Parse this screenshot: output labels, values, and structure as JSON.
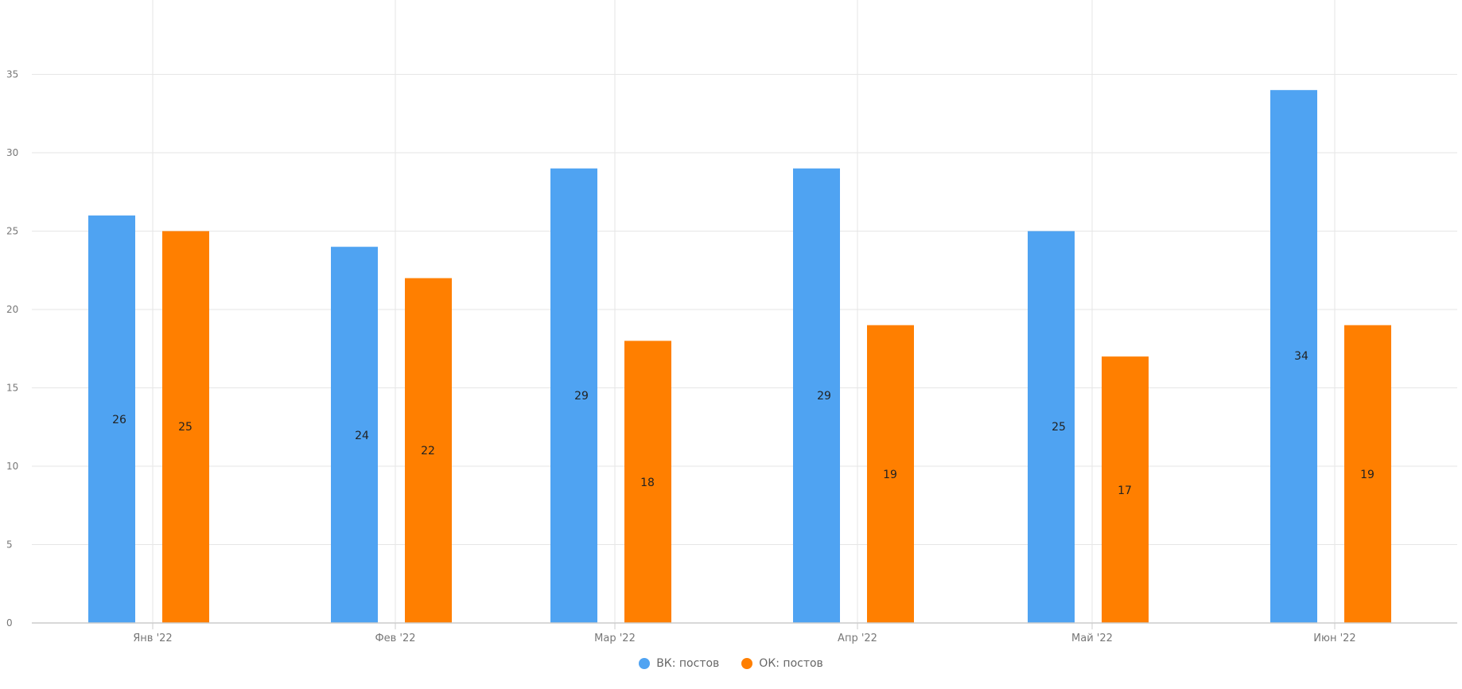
{
  "chart_data": {
    "type": "bar",
    "title": "",
    "xlabel": "",
    "ylabel": "",
    "categories": [
      "Янв '22",
      "Фев '22",
      "Мар '22",
      "Апр '22",
      "Май '22",
      "Июн '22"
    ],
    "series": [
      {
        "name": "ВК: постов",
        "color": "#4fa3f2",
        "values": [
          26,
          24,
          29,
          29,
          25,
          34
        ]
      },
      {
        "name": "ОК: постов",
        "color": "#ff7f00",
        "values": [
          25,
          22,
          18,
          19,
          17,
          19
        ]
      }
    ],
    "ylim": [
      0,
      40
    ],
    "yticks": [
      "0",
      "5",
      "10",
      "15",
      "20",
      "25",
      "30",
      "35"
    ],
    "grid": true,
    "data_labels": true,
    "legend": "bottom-center"
  }
}
